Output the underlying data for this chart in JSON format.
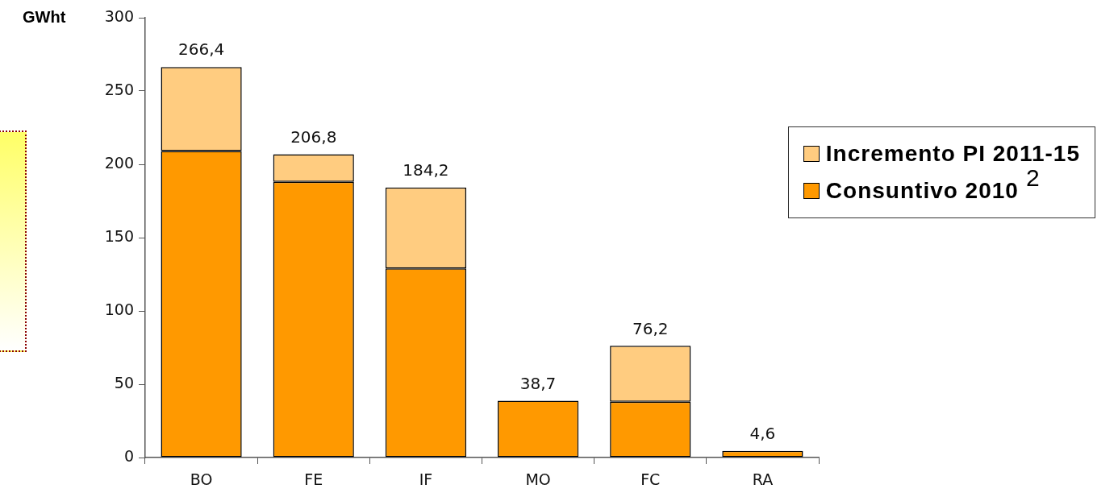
{
  "chart_data": {
    "type": "bar",
    "stacked": true,
    "ylabel": "GWht",
    "categories": [
      "BO",
      "FE",
      "IF",
      "MO",
      "FC",
      "RA"
    ],
    "series": [
      {
        "name": "Consuntivo 2010",
        "color": "#ff9900",
        "values": [
          209,
          188,
          129,
          38.7,
          38,
          4.6
        ]
      },
      {
        "name": "Incremento PI 2011-15",
        "color": "#ffcc80",
        "values": [
          57.4,
          18.8,
          55.2,
          0,
          38.2,
          0
        ]
      }
    ],
    "totals": [
      "266,4",
      "206,8",
      "184,2",
      "38,7",
      "76,2",
      "4,6"
    ],
    "ylim": [
      0,
      300
    ],
    "yticks": [
      0,
      50,
      100,
      150,
      200,
      250,
      300
    ],
    "grid": false,
    "legend": "top right",
    "annotations": [
      "2"
    ]
  }
}
